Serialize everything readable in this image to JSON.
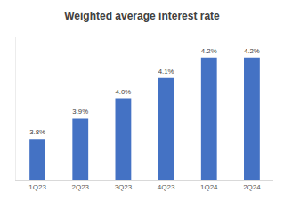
{
  "chart_data": {
    "type": "bar",
    "title": "Weighted average interest rate",
    "categories": [
      "1Q23",
      "2Q23",
      "3Q23",
      "4Q23",
      "1Q24",
      "2Q24"
    ],
    "values": [
      3.8,
      3.9,
      4.0,
      4.1,
      4.2,
      4.2
    ],
    "value_labels": [
      "3.8%",
      "3.9%",
      "4.0%",
      "4.1%",
      "4.2%",
      "4.2%"
    ],
    "color": "#4472c4",
    "ylim": [
      3.6,
      4.3
    ],
    "grid": false,
    "data_labels": true,
    "tick_labels": "x"
  }
}
